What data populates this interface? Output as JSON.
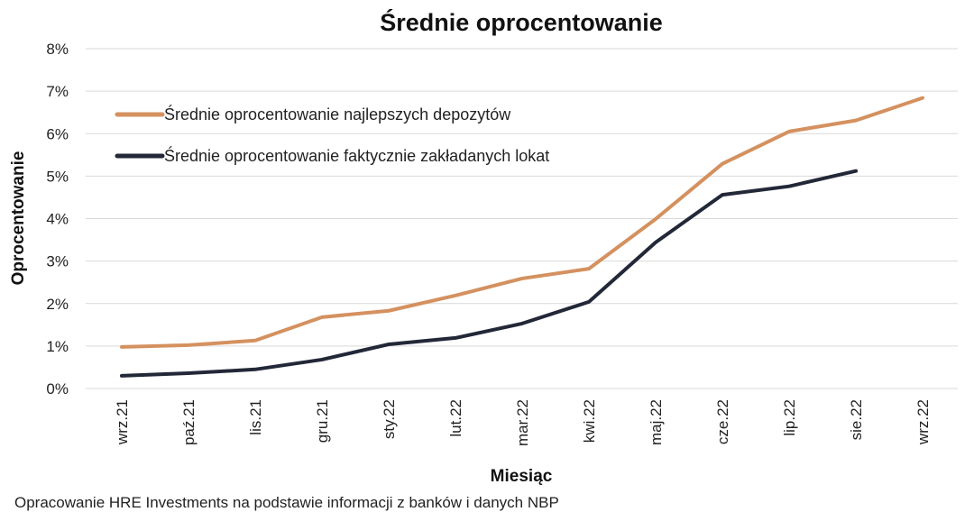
{
  "chart_data": {
    "type": "line",
    "title": "Średnie oprocentowanie",
    "xlabel": "Miesiąc",
    "ylabel": "Oprocentowanie",
    "source": "Opracowanie HRE Investments na podstawie informacji z banków i danych NBP",
    "categories": [
      "wrz.21",
      "paź.21",
      "lis.21",
      "gru.21",
      "sty.22",
      "lut.22",
      "mar.22",
      "kwi.22",
      "maj.22",
      "cze.22",
      "lip.22",
      "sie.22",
      "wrz.22"
    ],
    "ylim": [
      0,
      8
    ],
    "yticks": [
      "0%",
      "1%",
      "2%",
      "3%",
      "4%",
      "5%",
      "6%",
      "7%",
      "8%"
    ],
    "grid": true,
    "legend_position": "top-left",
    "series": [
      {
        "name": "Średnie oprocentowanie najlepszych depozytów",
        "color": "#d4915f",
        "values": [
          0.98,
          1.02,
          1.13,
          1.68,
          1.83,
          2.19,
          2.59,
          2.82,
          3.99,
          5.29,
          6.05,
          6.31,
          6.84
        ]
      },
      {
        "name": "Średnie oprocentowanie faktycznie zakładanych lokat",
        "color": "#232838",
        "values": [
          0.3,
          0.36,
          0.45,
          0.68,
          1.04,
          1.19,
          1.53,
          2.04,
          3.44,
          4.56,
          4.76,
          5.12,
          null
        ]
      }
    ]
  }
}
